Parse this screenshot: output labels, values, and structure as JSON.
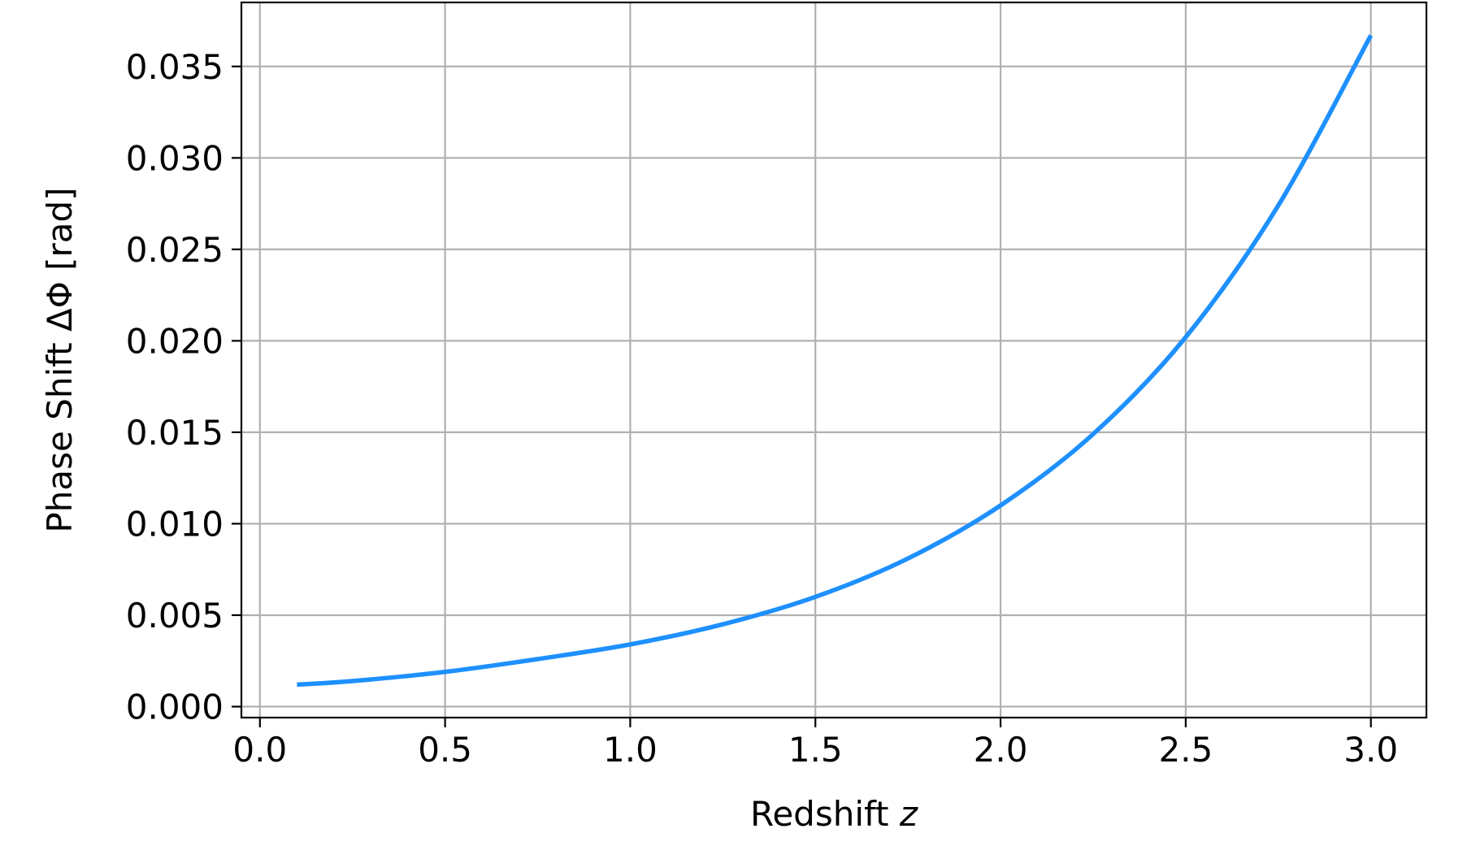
{
  "chart_data": {
    "type": "line",
    "xlabel": "Redshift",
    "xlabel_var": "z",
    "ylabel": "Phase Shift ΔΦ [rad]",
    "xlim": [
      -0.05,
      3.15
    ],
    "ylim": [
      -0.0006,
      0.0385
    ],
    "x_ticks": [
      0.0,
      0.5,
      1.0,
      1.5,
      2.0,
      2.5,
      3.0
    ],
    "x_tick_labels": [
      "0.0",
      "0.5",
      "1.0",
      "1.5",
      "2.0",
      "2.5",
      "3.0"
    ],
    "y_ticks": [
      0.0,
      0.005,
      0.01,
      0.015,
      0.02,
      0.025,
      0.03,
      0.035
    ],
    "y_tick_labels": [
      "0.000",
      "0.005",
      "0.010",
      "0.015",
      "0.020",
      "0.025",
      "0.030",
      "0.035"
    ],
    "grid": true,
    "colors": {
      "series": "#1e90ff",
      "grid": "#b0b0b0",
      "axes": "#000000"
    },
    "series": [
      {
        "x": [
          0.1,
          0.25,
          0.5,
          0.75,
          1.0,
          1.25,
          1.5,
          1.75,
          2.0,
          2.25,
          2.5,
          2.75,
          3.0
        ],
        "values": [
          0.0012,
          0.0014,
          0.0019,
          0.0026,
          0.0034,
          0.0045,
          0.006,
          0.0081,
          0.011,
          0.0149,
          0.0202,
          0.0274,
          0.0367
        ]
      }
    ]
  }
}
